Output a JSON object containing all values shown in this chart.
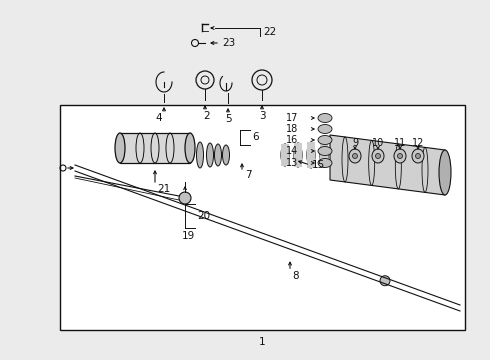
{
  "bg_color": "#ebebeb",
  "white": "#ffffff",
  "black": "#111111",
  "part_gray": "#c0c0c0",
  "part_dark": "#888888"
}
